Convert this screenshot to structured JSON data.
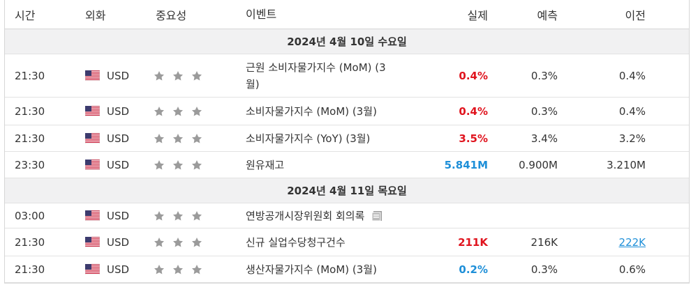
{
  "table": {
    "headers": [
      "시간",
      "외화",
      "중요성",
      "이벤트",
      "실제",
      "예측",
      "이전"
    ],
    "sections": [
      {
        "date": "2024년 4월 10일 수요일",
        "rows": [
          {
            "time": "21:30",
            "currency": "USD",
            "event": "근원 소비자물가지수 (MoM) (3월)",
            "actual": "0.4%",
            "actual_color": "#e0141e",
            "forecast": "0.3%",
            "previous": "0.4%"
          },
          {
            "time": "21:30",
            "currency": "USD",
            "event": "소비자물가지수 (MoM) (3월)",
            "actual": "0.4%",
            "actual_color": "#e0141e",
            "forecast": "0.3%",
            "previous": "0.4%"
          },
          {
            "time": "21:30",
            "currency": "USD",
            "event": "소비자물가지수 (YoY) (3월)",
            "actual": "3.5%",
            "actual_color": "#e0141e",
            "forecast": "3.4%",
            "previous": "3.2%"
          },
          {
            "time": "23:30",
            "currency": "USD",
            "event": "원유재고",
            "actual": "5.841M",
            "actual_color": "#1e8fd8",
            "forecast": "0.900M",
            "previous": "3.210M"
          }
        ]
      },
      {
        "date": "2024년 4월 11일 목요일",
        "rows": [
          {
            "time": "03:00",
            "currency": "USD",
            "event": "연방공개시장위원회 회의록",
            "actual": "",
            "actual_color": "#333333",
            "forecast": "",
            "previous": ""
          },
          {
            "time": "21:30",
            "currency": "USD",
            "event": "신규 실업수당청구건수",
            "actual": "211K",
            "actual_color": "#e0141e",
            "forecast": "216K",
            "previous": "222K",
            "previous_link": true
          },
          {
            "time": "21:30",
            "currency": "USD",
            "event": "생산자물가지수 (MoM) (3월)",
            "actual": "0.2%",
            "actual_color": "#1e8fd8",
            "forecast": "0.3%",
            "previous": "0.6%"
          }
        ]
      }
    ]
  }
}
